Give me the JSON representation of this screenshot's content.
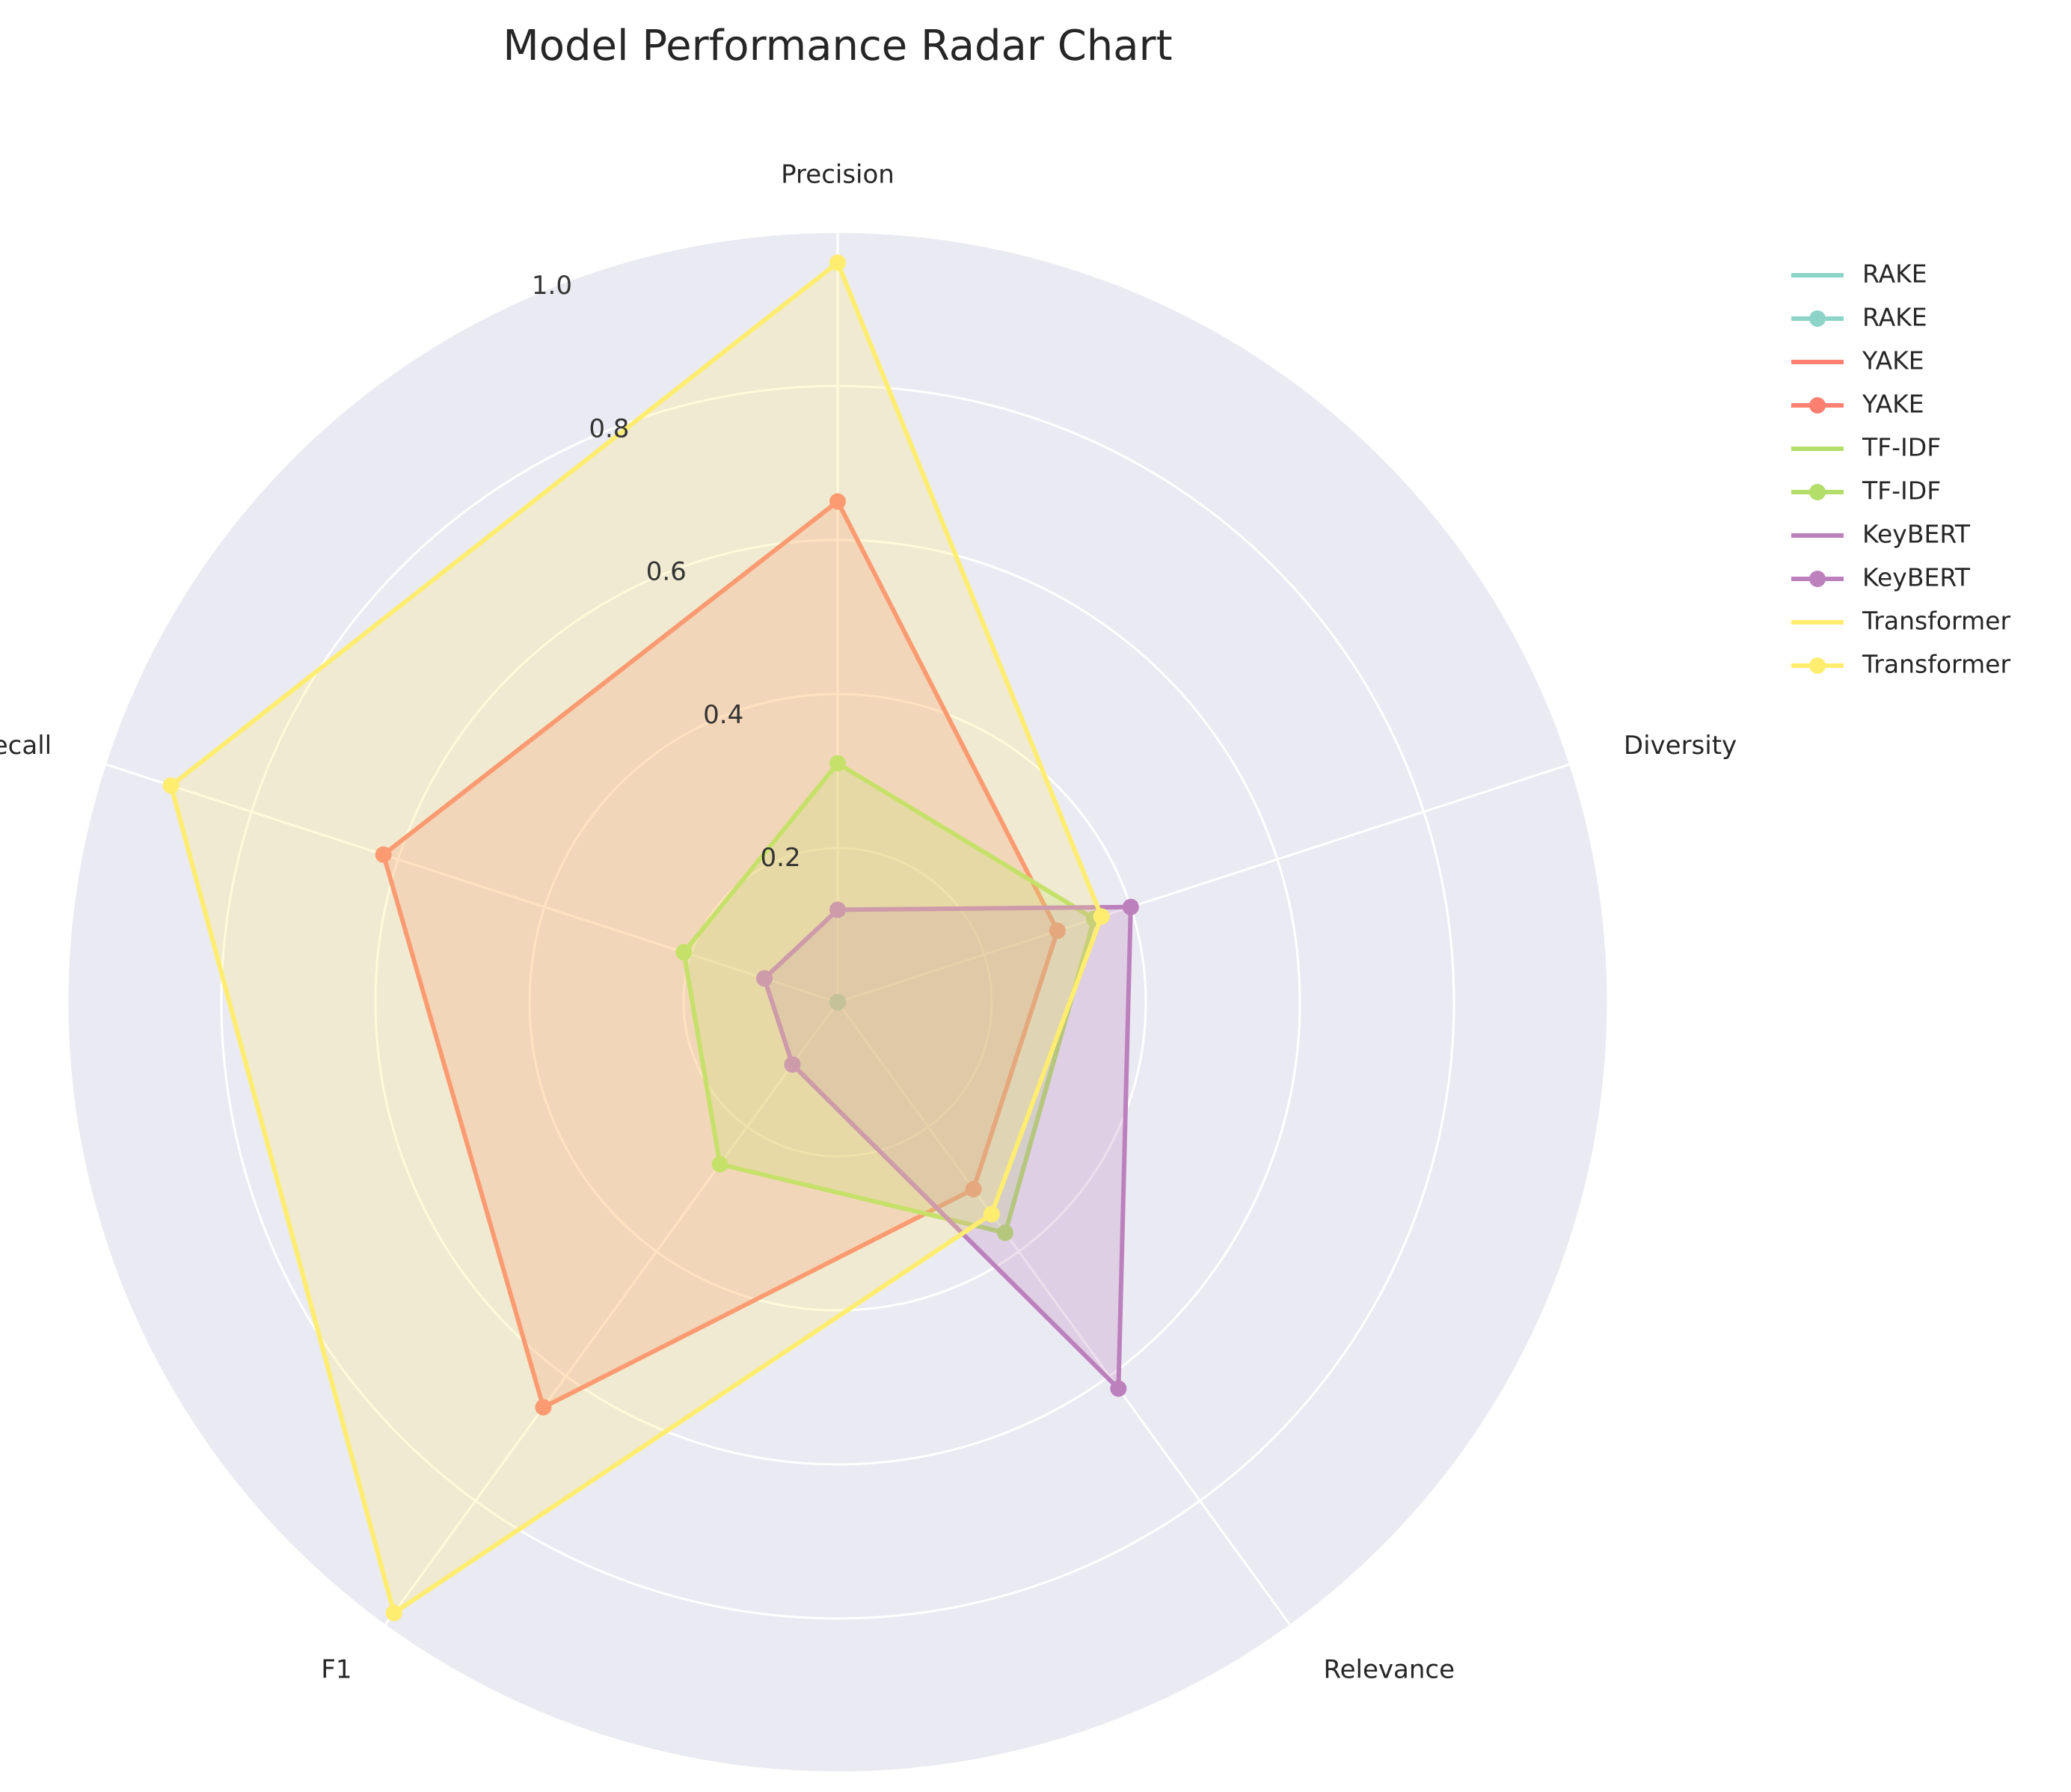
{
  "chart_data": {
    "type": "radar",
    "title": "Model Performance Radar Chart",
    "axes": [
      "Precision",
      "Diversity",
      "Relevance",
      "F1",
      "Recall"
    ],
    "r_ticks": [
      0.2,
      0.4,
      0.6,
      0.8,
      1.0
    ],
    "r_tick_labels": [
      "0.2",
      "0.4",
      "0.6",
      "0.8",
      "1.0"
    ],
    "r_max": 1.0,
    "grid": true,
    "legend_position": "upper-right-outside",
    "series": [
      {
        "name": "RAKE",
        "color": "#8dd3c7",
        "values": [
          0.0,
          0.0,
          0.0,
          0.0,
          0.0
        ]
      },
      {
        "name": "YAKE",
        "color": "#fb8072",
        "values": [
          0.65,
          0.3,
          0.3,
          0.65,
          0.62
        ]
      },
      {
        "name": "TF-IDF",
        "color": "#b3de69",
        "values": [
          0.31,
          0.35,
          0.37,
          0.26,
          0.21
        ]
      },
      {
        "name": "KeyBERT",
        "color": "#bc80bd",
        "values": [
          0.12,
          0.4,
          0.62,
          0.1,
          0.1
        ]
      },
      {
        "name": "Transformer",
        "color": "#ffed6f",
        "values": [
          0.96,
          0.36,
          0.34,
          0.98,
          0.91
        ]
      }
    ],
    "legend_entries": [
      "RAKE",
      "RAKE",
      "YAKE",
      "YAKE",
      "TF-IDF",
      "TF-IDF",
      "KeyBERT",
      "KeyBERT",
      "Transformer",
      "Transformer"
    ]
  }
}
